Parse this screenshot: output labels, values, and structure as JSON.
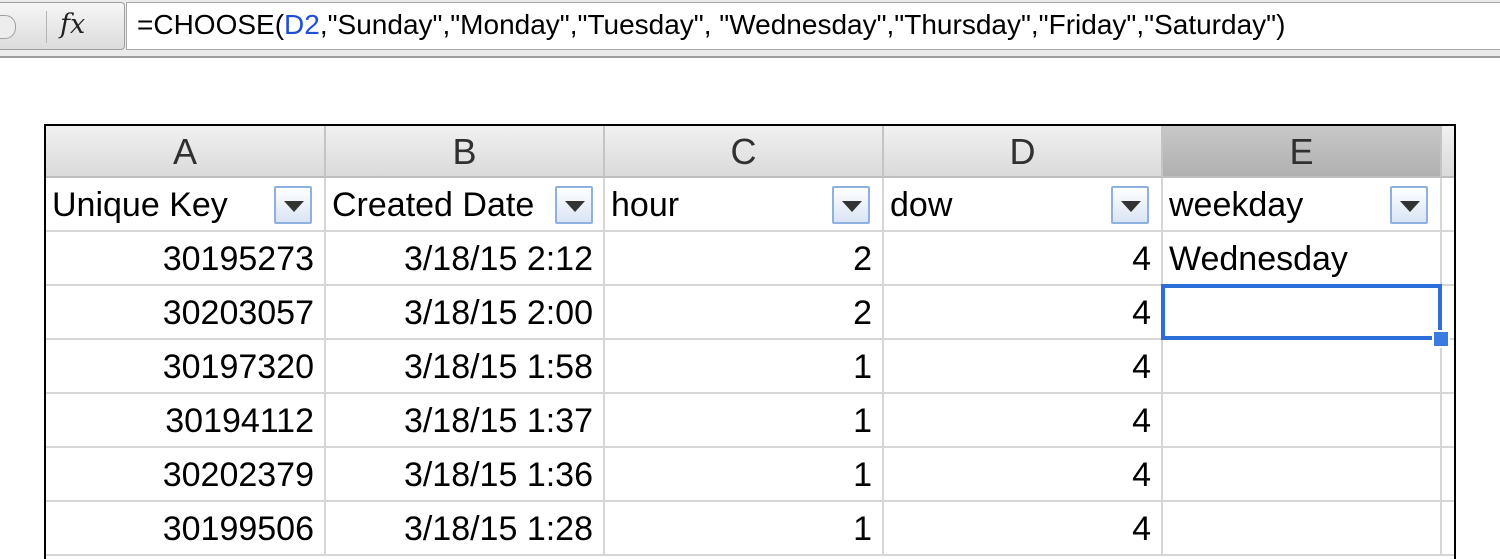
{
  "formula_bar": {
    "fx_label": "fx",
    "formula_prefix": "=CHOOSE(",
    "formula_ref": "D2",
    "formula_suffix": ",\"Sunday\",\"Monday\",\"Tuesday\", \"Wednesday\",\"Thursday\",\"Friday\",\"Saturday\")"
  },
  "sheet": {
    "column_letters": [
      "A",
      "B",
      "C",
      "D",
      "E"
    ],
    "selected_column": "E",
    "header_row": [
      "Unique Key",
      "Created Date",
      "hour",
      "dow",
      "weekday"
    ],
    "rows": [
      [
        "30195273",
        "3/18/15 2:12",
        "2",
        "4",
        "Wednesday"
      ],
      [
        "30203057",
        "3/18/15 2:00",
        "2",
        "4",
        ""
      ],
      [
        "30197320",
        "3/18/15 1:58",
        "1",
        "4",
        ""
      ],
      [
        "30194112",
        "3/18/15 1:37",
        "1",
        "4",
        ""
      ],
      [
        "30202379",
        "3/18/15 1:36",
        "1",
        "4",
        ""
      ],
      [
        "30199506",
        "3/18/15 1:28",
        "1",
        "4",
        ""
      ]
    ],
    "active_cell": "E3"
  }
}
